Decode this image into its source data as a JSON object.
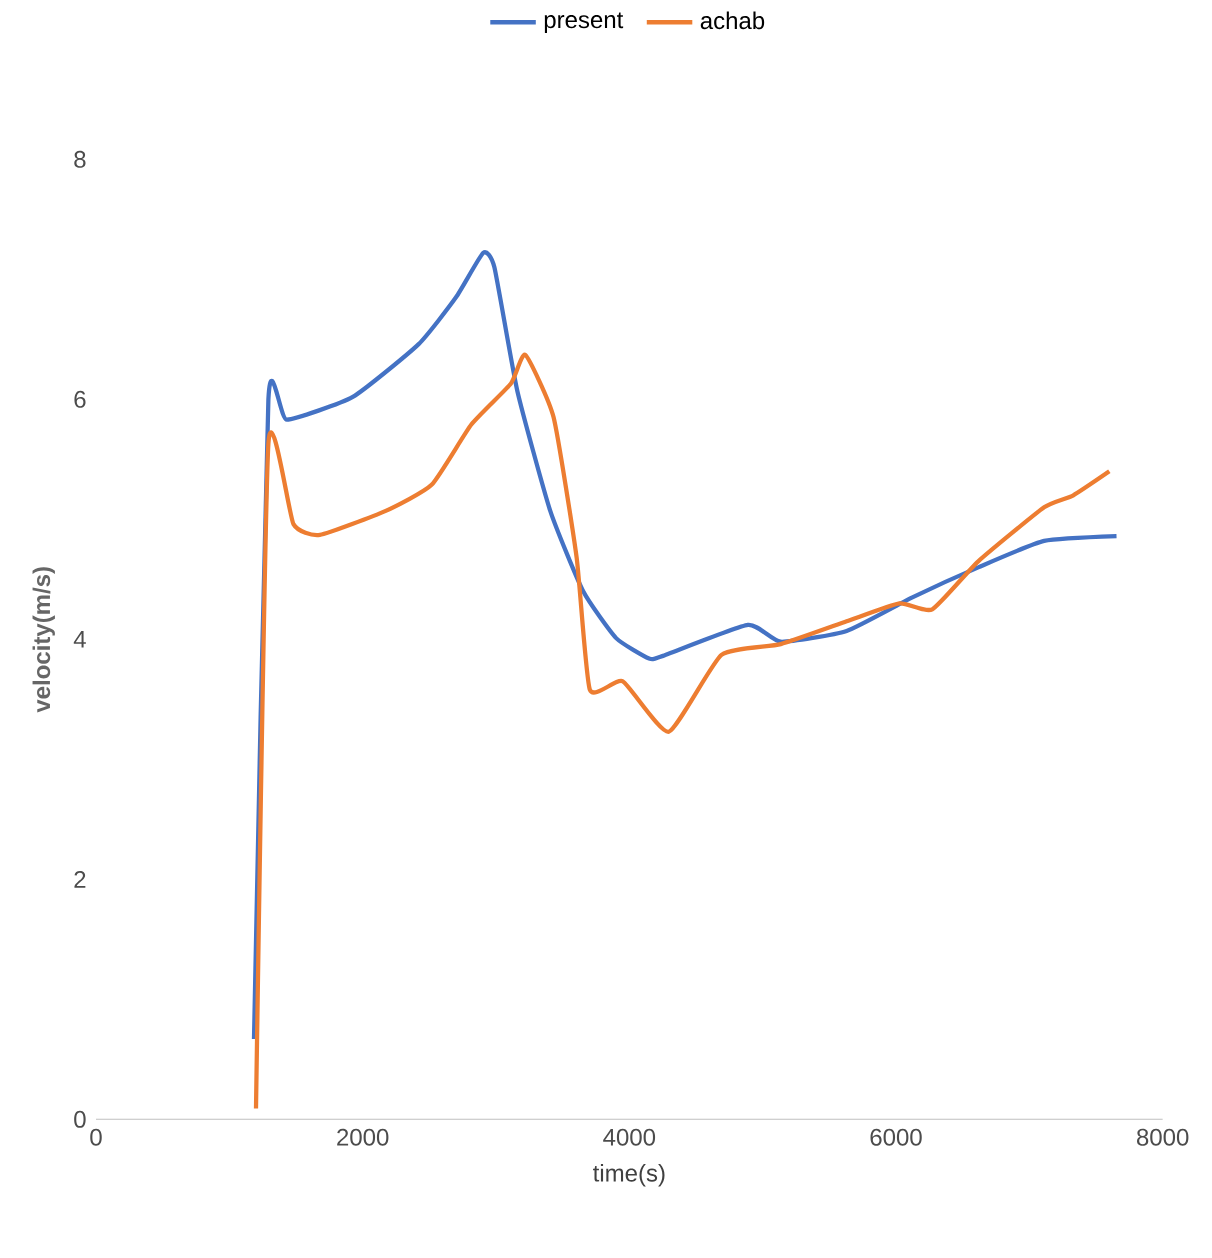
{
  "chart_data": {
    "type": "line",
    "xlabel": "time(s)",
    "ylabel": "velocity(m/s)",
    "xlim": [
      0,
      8000
    ],
    "xticks": [
      0,
      2000,
      4000,
      6000,
      8000
    ],
    "ylim": [
      0,
      8
    ],
    "yticks": [
      0,
      2,
      4,
      6,
      8
    ],
    "legend": "top",
    "grid": false,
    "marker": "none",
    "line_style": "solid",
    "series": [
      {
        "name": "present",
        "color": "#4472c4",
        "x": [
          1185,
          1293,
          1432,
          1926,
          2420,
          2700,
          2904,
          2988,
          3160,
          3407,
          3654,
          3901,
          4148,
          4247,
          4889,
          5136,
          5630,
          6123,
          6617,
          7111,
          7654
        ],
        "values": [
          0.67,
          6.0,
          5.83,
          6.02,
          6.46,
          6.85,
          7.22,
          7.1,
          6.07,
          5.07,
          4.4,
          4.01,
          3.84,
          3.86,
          4.12,
          3.98,
          4.07,
          4.35,
          4.6,
          4.82,
          4.86
        ]
      },
      {
        "name": "achab",
        "color": "#ed7d31",
        "x": [
          1200,
          1293,
          1481,
          1679,
          2173,
          2519,
          2815,
          3111,
          3220,
          3432,
          3605,
          3704,
          3951,
          4296,
          4691,
          5136,
          5630,
          6025,
          6272,
          6617,
          7111,
          7330,
          7600
        ],
        "values": [
          0.09,
          5.63,
          4.96,
          4.87,
          5.07,
          5.29,
          5.79,
          6.13,
          6.37,
          5.85,
          4.68,
          3.58,
          3.65,
          3.23,
          3.87,
          3.96,
          4.15,
          4.3,
          4.25,
          4.65,
          5.1,
          5.2,
          5.4
        ]
      }
    ]
  }
}
